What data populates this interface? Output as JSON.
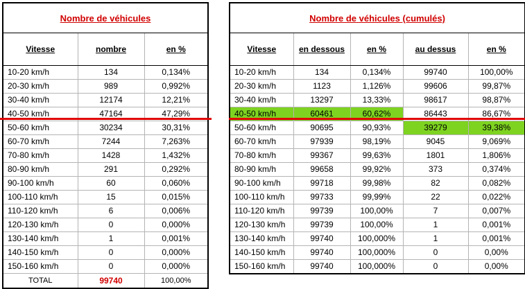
{
  "left_table": {
    "title": "Nombre de véhicules",
    "headers": [
      "Vitesse",
      "nombre",
      "en %"
    ],
    "rows": [
      [
        "10-20 km/h",
        "134",
        "0,134%"
      ],
      [
        "20-30 km/h",
        "989",
        "0,992%"
      ],
      [
        "30-40 km/h",
        "12174",
        "12,21%"
      ],
      [
        "40-50 km/h",
        "47164",
        "47,29%"
      ],
      [
        "50-60 km/h",
        "30234",
        "30,31%"
      ],
      [
        "60-70 km/h",
        "7244",
        "7,263%"
      ],
      [
        "70-80 km/h",
        "1428",
        "1,432%"
      ],
      [
        "80-90 km/h",
        "291",
        "0,292%"
      ],
      [
        "90-100 km/h",
        "60",
        "0,060%"
      ],
      [
        "100-110 km/h",
        "15",
        "0,015%"
      ],
      [
        "110-120 km/h",
        "6",
        "0,006%"
      ],
      [
        "120-130 km/h",
        "0",
        "0,000%"
      ],
      [
        "130-140 km/h",
        "1",
        "0,001%"
      ],
      [
        "140-150 km/h",
        "0",
        "0,000%"
      ],
      [
        "150-160 km/h",
        "0",
        "0,000%"
      ]
    ],
    "total": [
      "TOTAL",
      "99740",
      "100,00%"
    ]
  },
  "right_table": {
    "title": "Nombre de véhicules (cumulés)",
    "headers": [
      "Vitesse",
      "en dessous",
      "en %",
      "au dessus",
      "en %"
    ],
    "rows": [
      [
        "10-20 km/h",
        "134",
        "0,134%",
        "99740",
        "100,00%"
      ],
      [
        "20-30 km/h",
        "1123",
        "1,126%",
        "99606",
        "99,87%"
      ],
      [
        "30-40 km/h",
        "13297",
        "13,33%",
        "98617",
        "98,87%"
      ],
      [
        "40-50 km/h",
        "60461",
        "60,62%",
        "86443",
        "86,67%"
      ],
      [
        "50-60 km/h",
        "90695",
        "90,93%",
        "39279",
        "39,38%"
      ],
      [
        "60-70 km/h",
        "97939",
        "98,19%",
        "9045",
        "9,069%"
      ],
      [
        "70-80 km/h",
        "99367",
        "99,63%",
        "1801",
        "1,806%"
      ],
      [
        "80-90 km/h",
        "99658",
        "99,92%",
        "373",
        "0,374%"
      ],
      [
        "90-100 km/h",
        "99718",
        "99,98%",
        "82",
        "0,082%"
      ],
      [
        "100-110 km/h",
        "99733",
        "99,99%",
        "22",
        "0,022%"
      ],
      [
        "110-120 km/h",
        "99739",
        "100,00%",
        "7",
        "0,007%"
      ],
      [
        "120-130 km/h",
        "99739",
        "100,00%",
        "1",
        "0,001%"
      ],
      [
        "130-140 km/h",
        "99740",
        "100,000%",
        "1",
        "0,001%"
      ],
      [
        "140-150 km/h",
        "99740",
        "100,000%",
        "0",
        "0,00%"
      ],
      [
        "150-160 km/h",
        "99740",
        "100,000%",
        "0",
        "0,00%"
      ]
    ]
  },
  "colors": {
    "highlight_green": "#7ed321",
    "title_red": "#d10000",
    "divider_red": "#e00000"
  }
}
